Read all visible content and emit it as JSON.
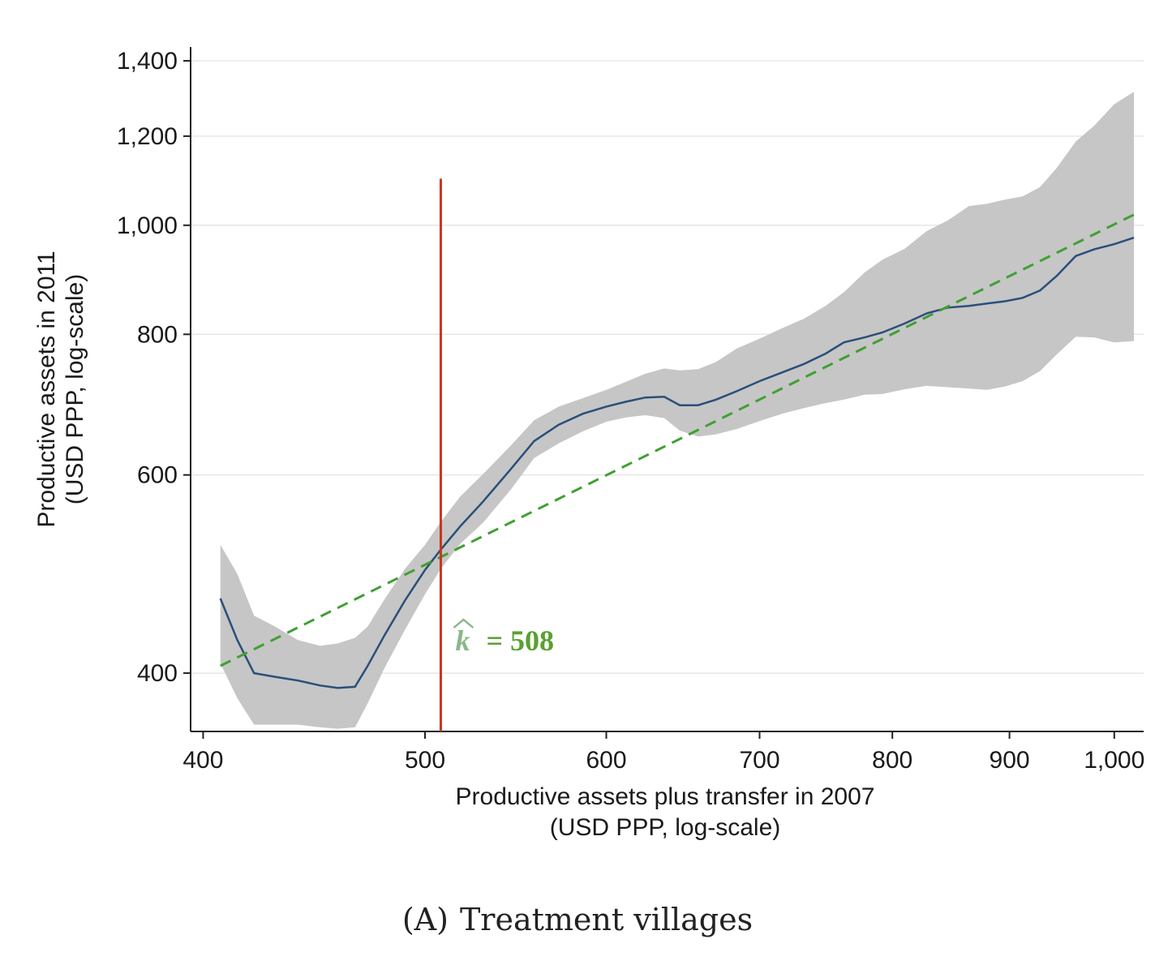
{
  "chart_data": {
    "type": "line",
    "caption": "(A) Treatment villages",
    "caption_prefix": "(A)",
    "caption_title": "Treatment villages",
    "xlabel_line1": "Productive assets plus transfer in 2007",
    "xlabel_line2": "(USD PPP, log-scale)",
    "ylabel_line1": "Productive assets in 2011",
    "ylabel_line2": "(USD PPP, log-scale)",
    "x_scale": "log",
    "y_scale": "log",
    "xlim": [
      395,
      1030
    ],
    "ylim": [
      355,
      1440
    ],
    "x_ticks": [
      {
        "value": 400,
        "label": "400"
      },
      {
        "value": 500,
        "label": "500"
      },
      {
        "value": 600,
        "label": "600"
      },
      {
        "value": 700,
        "label": "700"
      },
      {
        "value": 800,
        "label": "800"
      },
      {
        "value": 900,
        "label": "900"
      },
      {
        "value": 1000,
        "label": "1,000"
      }
    ],
    "y_ticks": [
      {
        "value": 400,
        "label": "400"
      },
      {
        "value": 600,
        "label": "600"
      },
      {
        "value": 800,
        "label": "800"
      },
      {
        "value": 1000,
        "label": "1,000"
      },
      {
        "value": 1200,
        "label": "1,200"
      },
      {
        "value": 1400,
        "label": "1,400"
      }
    ],
    "grid": "horizontal",
    "threshold": {
      "x": 508,
      "label_symbol": "k",
      "label_text": "= 508",
      "color": "#c8361e"
    },
    "series": [
      {
        "kind": "line",
        "color": "#2a4f7a",
        "x": [
          407,
          414,
          421,
          430,
          440,
          450,
          458,
          466,
          472,
          480,
          490,
          500,
          508,
          518,
          530,
          545,
          558,
          572,
          586,
          600,
          612,
          624,
          636,
          646,
          658,
          670,
          684,
          700,
          716,
          732,
          748,
          762,
          778,
          792,
          810,
          828,
          846,
          864,
          880,
          896,
          912,
          928,
          944,
          962,
          980,
          1000,
          1020
        ],
        "y": [
          466,
          428,
          400,
          397,
          394,
          390,
          388,
          389,
          406,
          432,
          464,
          494,
          515,
          540,
          568,
          607,
          643,
          665,
          680,
          690,
          697,
          703,
          704,
          692,
          692,
          700,
          712,
          727,
          740,
          753,
          769,
          787,
          795,
          803,
          818,
          835,
          845,
          848,
          852,
          856,
          862,
          875,
          902,
          939,
          952,
          962,
          975
        ]
      },
      {
        "kind": "confidence_band",
        "color": "#c6c6c6",
        "x": [
          407,
          414,
          421,
          430,
          440,
          450,
          458,
          466,
          472,
          480,
          490,
          500,
          508,
          518,
          530,
          545,
          558,
          572,
          586,
          600,
          612,
          624,
          636,
          646,
          658,
          670,
          684,
          700,
          716,
          732,
          748,
          762,
          778,
          792,
          810,
          828,
          846,
          864,
          880,
          896,
          912,
          928,
          944,
          962,
          980,
          1000,
          1020
        ],
        "upper": [
          520,
          490,
          450,
          440,
          428,
          423,
          425,
          430,
          440,
          465,
          495,
          520,
          545,
          574,
          601,
          637,
          671,
          690,
          702,
          714,
          726,
          738,
          746,
          743,
          745,
          756,
          777,
          793,
          810,
          826,
          848,
          872,
          908,
          932,
          953,
          988,
          1010,
          1040,
          1045,
          1054,
          1061,
          1081,
          1125,
          1187,
          1226,
          1281,
          1314
        ],
        "lower": [
          408,
          380,
          360,
          360,
          360,
          358,
          357,
          358,
          376,
          404,
          437,
          470,
          495,
          521,
          544,
          582,
          621,
          640,
          656,
          669,
          675,
          678,
          674,
          657,
          649,
          652,
          659,
          670,
          680,
          688,
          695,
          700,
          707,
          708,
          715,
          720,
          718,
          716,
          714,
          719,
          727,
          742,
          768,
          796,
          795,
          787,
          789
        ]
      },
      {
        "kind": "dashed_line",
        "color": "#3fa033",
        "x": [
          407,
          1020
        ],
        "y": [
          406,
          1022
        ]
      }
    ]
  }
}
